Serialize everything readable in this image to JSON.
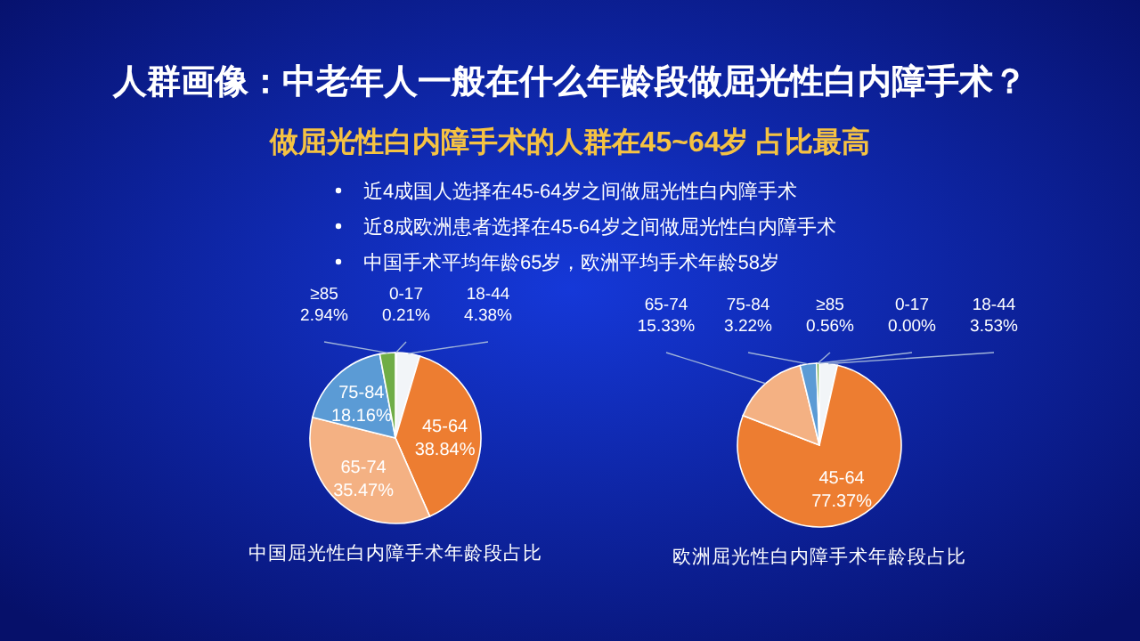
{
  "chart_data": [
    {
      "type": "other",
      "title": "人群画像：中老年人一般在什么年龄段做屈光性白内障手术？",
      "subtitle": "做屈光性白内障手术的人群在45~64岁 占比最高",
      "annotations": [
        "近4成国人选择在45-64岁之间做屈光性白内障手术",
        "近8成欧洲患者选择在45-64岁之间做屈光性白内障手术",
        "中国手术平均年龄65岁，欧洲平均手术年龄58岁"
      ]
    },
    {
      "type": "pie",
      "title": "中国屈光性白内障手术年龄段占比",
      "categories": [
        "0-17",
        "18-44",
        "45-64",
        "65-74",
        "75-84",
        "≥85"
      ],
      "values": [
        0.21,
        4.38,
        38.84,
        35.47,
        18.16,
        2.94
      ],
      "value_labels": [
        "0.21%",
        "4.38%",
        "38.84%",
        "35.47%",
        "18.16%",
        "2.94%"
      ],
      "colors": [
        "#dfe8f2",
        "#f2f5f8",
        "#ed7d31",
        "#f4b183",
        "#5b9bd5",
        "#70ad47"
      ]
    },
    {
      "type": "pie",
      "title": "欧洲屈光性白内障手术年龄段占比",
      "categories": [
        "0-17",
        "18-44",
        "45-64",
        "65-74",
        "75-84",
        "≥85"
      ],
      "values": [
        0.0,
        3.53,
        77.37,
        15.33,
        3.22,
        0.56
      ],
      "value_labels": [
        "0.00%",
        "3.53%",
        "77.37%",
        "15.33%",
        "3.22%",
        "0.56%"
      ],
      "colors": [
        "#dfe8f2",
        "#f2f5f8",
        "#ed7d31",
        "#f4b183",
        "#5b9bd5",
        "#70ad47"
      ]
    }
  ]
}
